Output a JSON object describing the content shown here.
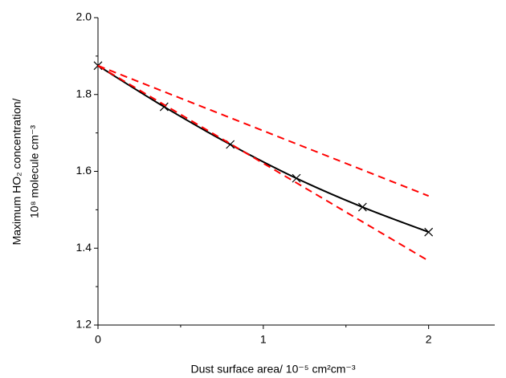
{
  "chart_data": {
    "type": "line",
    "xlabel": "Dust surface area/ 10⁻⁵ cm²cm⁻³",
    "ylabel": [
      "Maximum HO₂ concentration/",
      "10⁸ molecule cm⁻³"
    ],
    "xlim": [
      0,
      2.4
    ],
    "ylim": [
      1.2,
      2.0
    ],
    "xticks": [
      0,
      1,
      2
    ],
    "yticks": [
      1.2,
      1.4,
      1.6,
      1.8,
      {
        "value": 2,
        "label": "2.0"
      }
    ],
    "xminorticks": [
      0.5,
      1.5
    ],
    "yminorticks": [
      1.3,
      1.5,
      1.7,
      1.9
    ],
    "series": [
      {
        "color": "#000000",
        "line": "solid",
        "smooth": true,
        "marker": "x",
        "x": [
          0,
          0.4,
          0.8,
          1.2,
          1.6,
          2.0
        ],
        "values": [
          1.875,
          1.768,
          1.67,
          1.582,
          1.507,
          1.442
        ]
      },
      {
        "color": "#ff0000",
        "line": "dashed",
        "x": [
          0,
          2.0
        ],
        "values": [
          1.875,
          1.536
        ]
      },
      {
        "color": "#ff0000",
        "line": "dashed",
        "x": [
          0,
          2.0
        ],
        "values": [
          1.875,
          1.367
        ]
      }
    ]
  }
}
